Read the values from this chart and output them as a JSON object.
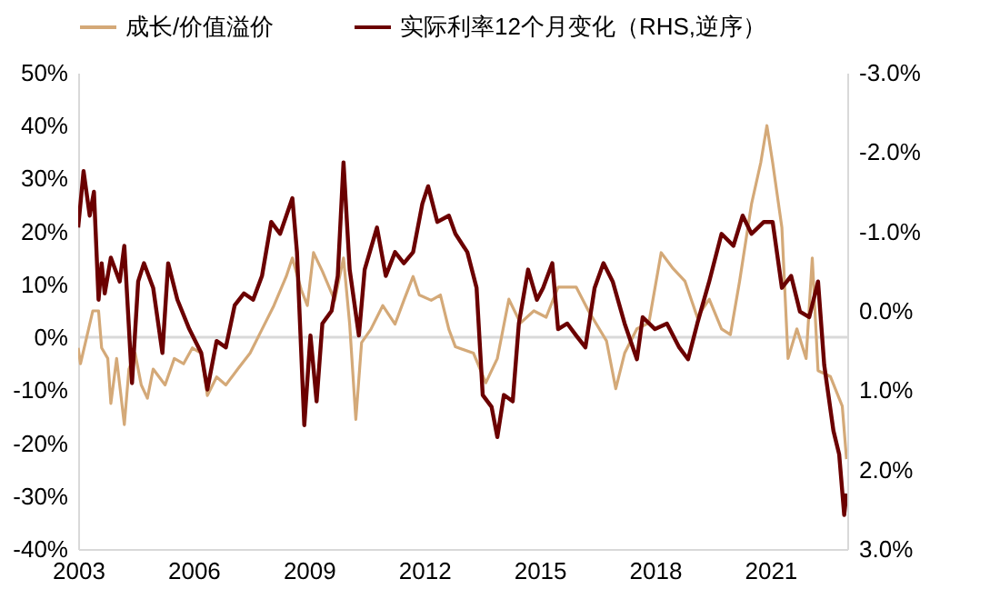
{
  "chart_data": {
    "type": "line",
    "xlim": [
      2003,
      2023
    ],
    "xticks": [
      2003,
      2006,
      2009,
      2012,
      2015,
      2018,
      2021
    ],
    "ylim": [
      -40,
      50
    ],
    "yticks": [
      {
        "value": -40,
        "label": "-40%"
      },
      {
        "value": -30,
        "label": "-30%"
      },
      {
        "value": -20,
        "label": "-20%"
      },
      {
        "value": -10,
        "label": "-10%"
      },
      {
        "value": 0,
        "label": "0%"
      },
      {
        "value": 10,
        "label": "10%"
      },
      {
        "value": 20,
        "label": "20%"
      },
      {
        "value": 30,
        "label": "30%"
      },
      {
        "value": 40,
        "label": "40%"
      },
      {
        "value": 50,
        "label": "50%"
      }
    ],
    "y2lim": [
      3,
      -3
    ],
    "y2ticks": [
      {
        "value": 3,
        "label": "3.0%"
      },
      {
        "value": 2,
        "label": "2.0%"
      },
      {
        "value": 1,
        "label": "1.0%"
      },
      {
        "value": 0,
        "label": "0.0%"
      },
      {
        "value": -1,
        "label": "-1.0%"
      },
      {
        "value": -2,
        "label": "-2.0%"
      },
      {
        "value": -3,
        "label": "-3.0%"
      }
    ],
    "legend": "top",
    "grid": false,
    "ref_lines": [
      {
        "axis": "y",
        "value": 0,
        "color": "#d9d9d9"
      }
    ],
    "series": [
      {
        "name": "成长/价值溢价",
        "color": "#d4a978",
        "x": [
          2003.0,
          2003.06,
          2003.22,
          2003.38,
          2003.53,
          2003.61,
          2003.77,
          2003.85,
          2004.0,
          2004.2,
          2004.32,
          2004.48,
          2004.64,
          2004.8,
          2004.95,
          2005.26,
          2005.5,
          2005.74,
          2005.97,
          2006.2,
          2006.36,
          2006.6,
          2006.84,
          2007.15,
          2007.47,
          2007.78,
          2008.09,
          2008.41,
          2008.57,
          2008.8,
          2008.96,
          2009.12,
          2009.35,
          2009.67,
          2009.9,
          2010.06,
          2010.22,
          2010.37,
          2010.61,
          2010.92,
          2011.24,
          2011.47,
          2011.71,
          2011.87,
          2012.18,
          2012.42,
          2012.64,
          2012.81,
          2013.28,
          2013.6,
          2013.9,
          2014.2,
          2014.5,
          2014.85,
          2015.17,
          2015.48,
          2015.95,
          2016.27,
          2016.74,
          2016.98,
          2017.21,
          2017.53,
          2017.84,
          2018.16,
          2018.47,
          2018.78,
          2019.1,
          2019.41,
          2019.73,
          2019.96,
          2020.2,
          2020.51,
          2020.75,
          2020.91,
          2021.06,
          2021.3,
          2021.46,
          2021.69,
          2021.93,
          2022.09,
          2022.24,
          2022.56,
          2022.87,
          2022.98
        ],
        "values": [
          -2,
          -5,
          0,
          5,
          5,
          -2,
          -4,
          -12.5,
          -4,
          -16.5,
          -6,
          -3,
          -9,
          -11.5,
          -6,
          -9,
          -4,
          -5,
          -2,
          -3,
          -11,
          -7.5,
          -9,
          -6,
          -3,
          1.5,
          6,
          11.5,
          15,
          9,
          6,
          16,
          12.5,
          7,
          15,
          2.5,
          -15.5,
          -1,
          1.5,
          6,
          2.5,
          7,
          11.5,
          8,
          7,
          8,
          1.5,
          -1.8,
          -3,
          -8.6,
          -4,
          7.2,
          2.7,
          5,
          3.8,
          9.5,
          9.5,
          5,
          -0.7,
          -9.7,
          -3,
          1.6,
          2.7,
          16,
          13,
          10.6,
          3.8,
          7.2,
          1.6,
          0.5,
          10.6,
          25.2,
          33,
          40,
          33,
          20.7,
          -4,
          1.6,
          -4,
          15,
          -6.3,
          -7.4,
          -13,
          -23
        ]
      },
      {
        "name": "实际利率12个月变化（RHS,逆序）",
        "color": "#6b0000",
        "axis": "y2",
        "x": [
          2003.0,
          2003.14,
          2003.3,
          2003.41,
          2003.53,
          2003.61,
          2003.69,
          2003.85,
          2004.08,
          2004.2,
          2004.4,
          2004.56,
          2004.71,
          2004.95,
          2005.19,
          2005.34,
          2005.58,
          2005.89,
          2006.2,
          2006.36,
          2006.6,
          2006.84,
          2007.07,
          2007.31,
          2007.55,
          2007.78,
          2008.02,
          2008.25,
          2008.57,
          2008.69,
          2008.88,
          2009.04,
          2009.2,
          2009.35,
          2009.59,
          2009.75,
          2009.9,
          2010.06,
          2010.3,
          2010.45,
          2010.77,
          2011.0,
          2011.24,
          2011.47,
          2011.71,
          2011.95,
          2012.1,
          2012.34,
          2012.64,
          2012.81,
          2013.12,
          2013.36,
          2013.52,
          2013.75,
          2013.9,
          2014.07,
          2014.3,
          2014.46,
          2014.7,
          2014.93,
          2015.09,
          2015.33,
          2015.48,
          2015.72,
          2015.95,
          2016.19,
          2016.43,
          2016.66,
          2016.9,
          2017.21,
          2017.53,
          2017.68,
          2018.0,
          2018.31,
          2018.63,
          2018.86,
          2019.1,
          2019.41,
          2019.73,
          2020.04,
          2020.28,
          2020.51,
          2020.83,
          2021.06,
          2021.3,
          2021.54,
          2021.77,
          2022.01,
          2022.24,
          2022.4,
          2022.64,
          2022.79,
          2022.92,
          2022.98
        ],
        "values": [
          -1.05,
          -1.76,
          -1.2,
          -1.5,
          -0.14,
          -0.6,
          -0.22,
          -0.67,
          -0.37,
          -0.82,
          0.91,
          -0.37,
          -0.6,
          -0.29,
          0.53,
          -0.6,
          -0.14,
          0.23,
          0.53,
          0.99,
          0.38,
          0.46,
          -0.07,
          -0.22,
          -0.14,
          -0.44,
          -1.12,
          -0.97,
          -1.42,
          -0.74,
          1.44,
          0.31,
          1.14,
          0.16,
          0,
          -0.44,
          -1.87,
          -0.52,
          0.31,
          -0.52,
          -1.05,
          -0.44,
          -0.74,
          -0.6,
          -0.74,
          -1.35,
          -1.57,
          -1.12,
          -1.2,
          -0.97,
          -0.74,
          -0.29,
          1.06,
          1.21,
          1.59,
          1.06,
          1.14,
          0.16,
          -0.52,
          -0.14,
          -0.29,
          -0.6,
          0.23,
          0.16,
          0.31,
          0.46,
          -0.29,
          -0.6,
          -0.37,
          0.16,
          0.61,
          0.08,
          0.23,
          0.16,
          0.46,
          0.61,
          0.16,
          -0.37,
          -0.97,
          -0.82,
          -1.2,
          -0.97,
          -1.12,
          -1.12,
          -0.29,
          -0.44,
          0.01,
          0.08,
          -0.37,
          0.68,
          1.51,
          1.81,
          2.57,
          2.3
        ]
      }
    ]
  }
}
